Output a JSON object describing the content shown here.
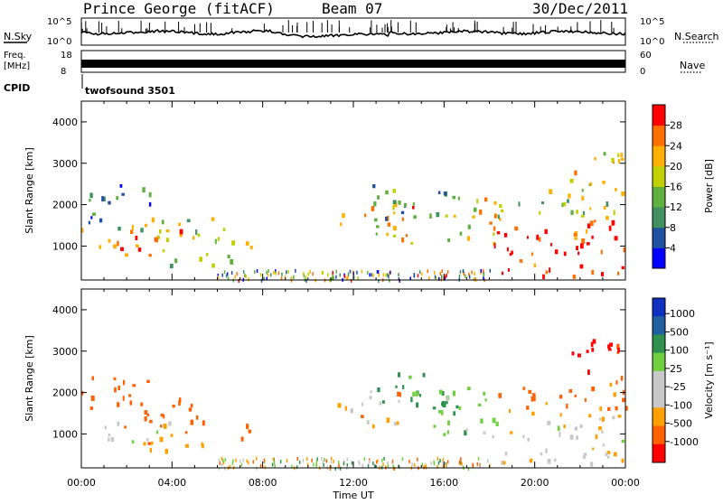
{
  "header": {
    "station": "Prince George (fitACF)",
    "beam": "Beam 07",
    "date": "30/Dec/2011"
  },
  "strip": {
    "nsky_label": "N.Sky",
    "nsky_ticks": [
      "10^5",
      "10^0"
    ],
    "nsearch_label": "N.Search",
    "nsearch_ticks": [
      "10^5",
      "10^0"
    ],
    "freq_label": "Freq.",
    "freq_unit": "[MHz]",
    "freq_ticks": [
      "18",
      "8"
    ],
    "nave_label": "Nave",
    "nave_ticks": [
      "60",
      "0"
    ],
    "cpid_label": "CPID",
    "cpid_value": "twofsound 3501"
  },
  "colors": {
    "power": [
      "#0000ff",
      "#2050a0",
      "#409060",
      "#60b040",
      "#c0d000",
      "#ffb000",
      "#ff7000",
      "#ff0000"
    ],
    "velocity": [
      "#ff0000",
      "#ff6000",
      "#ffa000",
      "#c8c8c8",
      "#c8c8c8",
      "#70d040",
      "#309050",
      "#2060a0",
      "#1030c0"
    ]
  },
  "chart_data": [
    {
      "type": "heatmap",
      "panel": "power",
      "xlabel": "",
      "ylabel": "Slant Range [km]",
      "xlim": [
        "00:00",
        "24:00"
      ],
      "ylim": [
        180,
        4500
      ],
      "y_ticks": [
        "1000",
        "2000",
        "3000",
        "4000"
      ],
      "colorbar_label": "Power [dB]",
      "colorbar_ticks": [
        "4",
        "8",
        "12",
        "16",
        "20",
        "24",
        "28"
      ],
      "colorbar_range": [
        0,
        32
      ],
      "echo_regions": [
        {
          "t0": 0.0,
          "t1": 4.7,
          "r0": 700,
          "r1": 1500,
          "level": 26
        },
        {
          "t0": 1.6,
          "t1": 6.4,
          "r0": 1100,
          "r1": 1700,
          "level": 15
        },
        {
          "t0": 0.3,
          "t1": 3.2,
          "r0": 1600,
          "r1": 2500,
          "level": 9
        },
        {
          "t0": 2.4,
          "t1": 6.6,
          "r0": 550,
          "r1": 850,
          "level": 13
        },
        {
          "t0": 6.4,
          "t1": 7.6,
          "r0": 900,
          "r1": 1300,
          "level": 21
        },
        {
          "t0": 11.3,
          "t1": 14.8,
          "r0": 1100,
          "r1": 2100,
          "level": 22
        },
        {
          "t0": 12.8,
          "t1": 16.5,
          "r0": 1500,
          "r1": 2500,
          "level": 11
        },
        {
          "t0": 15.8,
          "t1": 18.6,
          "r0": 1000,
          "r1": 2200,
          "level": 20
        },
        {
          "t0": 18.0,
          "t1": 24.0,
          "r0": 300,
          "r1": 1700,
          "level": 30
        },
        {
          "t0": 18.2,
          "t1": 24.0,
          "r0": 1700,
          "r1": 2400,
          "level": 17
        },
        {
          "t0": 21.5,
          "t1": 24.0,
          "r0": 2400,
          "r1": 3400,
          "level": 18
        }
      ]
    },
    {
      "type": "heatmap",
      "panel": "velocity",
      "xlabel": "Time UT",
      "ylabel": "Slant Range [km]",
      "xlim": [
        "00:00",
        "24:00"
      ],
      "ylim": [
        180,
        4500
      ],
      "x_ticks": [
        "00:00",
        "04:00",
        "08:00",
        "12:00",
        "16:00",
        "20:00",
        "00:00"
      ],
      "y_ticks": [
        "1000",
        "2000",
        "3000",
        "4000"
      ],
      "colorbar_label": "Velocity [m s⁻¹]",
      "colorbar_ticks": [
        "1000",
        "500",
        "100",
        "25",
        "-25",
        "-100",
        "-500",
        "-1000"
      ],
      "echo_regions": [
        {
          "t0": 0.0,
          "t1": 4.0,
          "r0": 800,
          "r1": 1400,
          "level": 0
        },
        {
          "t0": 1.5,
          "t1": 5.5,
          "r0": 1000,
          "r1": 1900,
          "level": -300
        },
        {
          "t0": 2.2,
          "t1": 7.0,
          "r0": 600,
          "r1": 850,
          "level": -120
        },
        {
          "t0": 6.3,
          "t1": 7.6,
          "r0": 900,
          "r1": 1300,
          "level": -300
        },
        {
          "t0": 0.0,
          "t1": 3.0,
          "r0": 1600,
          "r1": 2400,
          "level": -300
        },
        {
          "t0": 11.3,
          "t1": 14.5,
          "r0": 1200,
          "r1": 2100,
          "level": -50
        },
        {
          "t0": 13.0,
          "t1": 16.8,
          "r0": 1500,
          "r1": 2500,
          "level": 150
        },
        {
          "t0": 15.5,
          "t1": 18.5,
          "r0": 1000,
          "r1": 2200,
          "level": 60
        },
        {
          "t0": 18.0,
          "t1": 24.0,
          "r0": 300,
          "r1": 1500,
          "level": 0
        },
        {
          "t0": 18.2,
          "t1": 24.0,
          "r0": 1500,
          "r1": 2300,
          "level": -150
        },
        {
          "t0": 21.5,
          "t1": 24.0,
          "r0": 2400,
          "r1": 3400,
          "level": -700
        }
      ]
    }
  ]
}
